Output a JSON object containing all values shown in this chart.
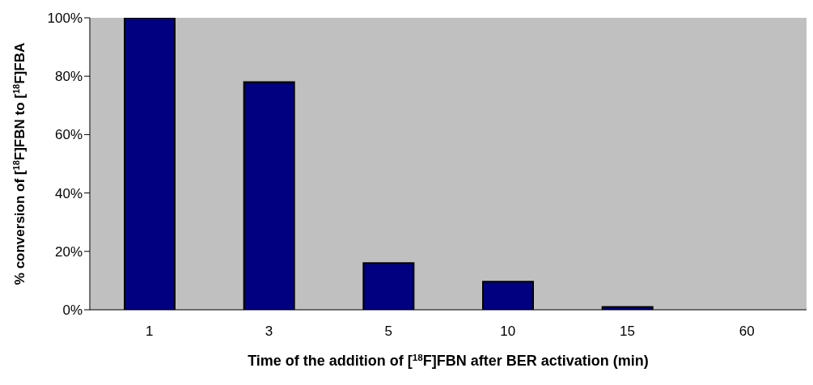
{
  "chart_data": {
    "type": "bar",
    "xlabel": "Time of the addition of [$^{18}$F]FBN after BER activation (min)",
    "ylabel": "% conversion of [$^{18}$F]FBN to [$^{18}$F]FBA",
    "categories": [
      "1",
      "3",
      "5",
      "10",
      "15",
      "60"
    ],
    "values": [
      100,
      78,
      16,
      9.6,
      1,
      0
    ],
    "color": "#000080",
    "ylim": [
      0,
      100
    ],
    "yticks": [
      {
        "value": 0,
        "label": "0%"
      },
      {
        "value": 20,
        "label": "20%"
      },
      {
        "value": 40,
        "label": "40%"
      },
      {
        "value": 60,
        "label": "60%"
      },
      {
        "value": 80,
        "label": "80%"
      },
      {
        "value": 100,
        "label": "100%"
      }
    ],
    "grid": false,
    "legend": false
  }
}
